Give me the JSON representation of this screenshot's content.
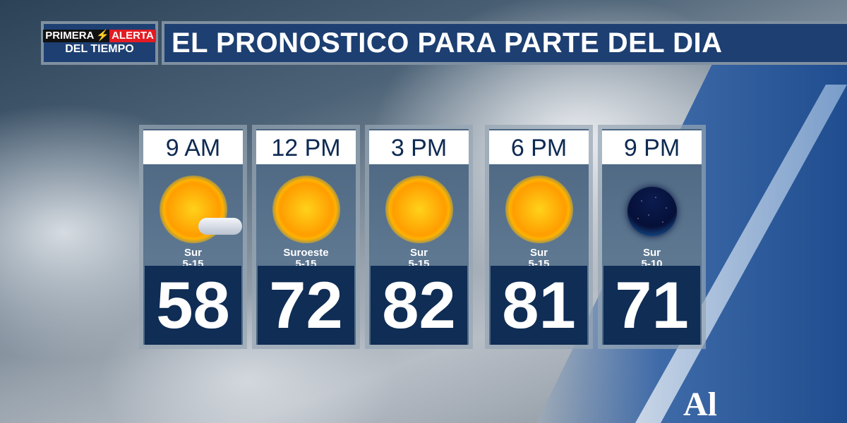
{
  "header": {
    "logo": {
      "line1_left": "PRIMERA",
      "line1_right": "ALERTA",
      "line2": "DEL TIEMPO"
    },
    "title": "EL PRONOSTICO PARA PARTE DEL DIA"
  },
  "forecast": [
    {
      "time": "9 AM",
      "icon": "partly-sunny-icon",
      "wind_dir": "Sur",
      "wind_speed": "5-15",
      "temp": "58"
    },
    {
      "time": "12 PM",
      "icon": "sun-icon",
      "wind_dir": "Suroeste",
      "wind_speed": "5-15",
      "temp": "72"
    },
    {
      "time": "3 PM",
      "icon": "sun-icon",
      "wind_dir": "Sur",
      "wind_speed": "5-15",
      "temp": "82"
    },
    {
      "time": "6 PM",
      "icon": "sun-icon",
      "wind_dir": "Sur",
      "wind_speed": "5-15",
      "temp": "81"
    },
    {
      "time": "9 PM",
      "icon": "clear-night-icon",
      "wind_dir": "Sur",
      "wind_speed": "5-10",
      "temp": "71"
    }
  ],
  "brand_logo": "Al",
  "colors": {
    "navy": "#0f2d55",
    "title_bg": "#1d3f72",
    "alert_red": "#e31b23",
    "bolt": "#f7b500"
  }
}
